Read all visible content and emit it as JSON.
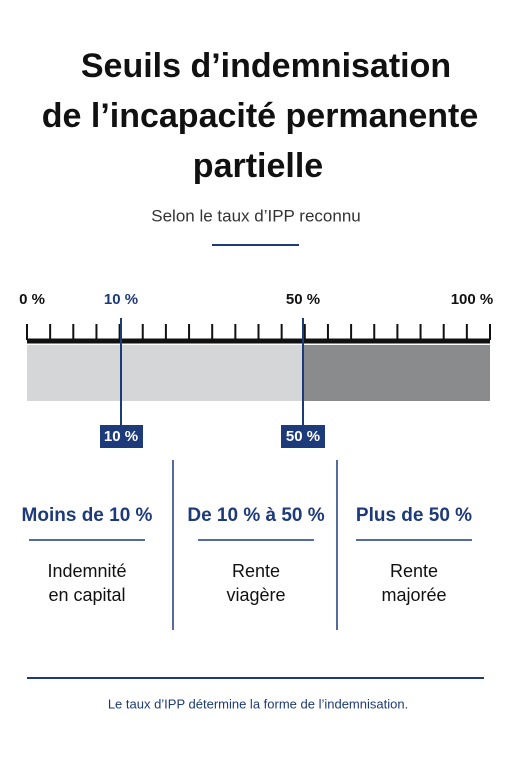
{
  "header": {
    "title": [
      "Seuils d’indemnisation",
      "de l’incapacité permanente",
      "partielle"
    ],
    "subtitle": "Selon le taux d’IPP reconnu"
  },
  "scale": {
    "labels": [
      "0 %",
      "10 %",
      "50 %",
      "100 %"
    ],
    "markers": [
      "10 %",
      "50 %"
    ]
  },
  "columns": [
    {
      "heading": "Moins de 10 %",
      "body": [
        "Indemnité",
        "en capital"
      ]
    },
    {
      "heading": "De 10 % à 50 %",
      "body": [
        "Rente",
        "viagère"
      ]
    },
    {
      "heading": "Plus de 50 %",
      "body": [
        "Rente",
        "majorée"
      ]
    }
  ],
  "footer": "Le taux d’IPP détermine la forme de l’indemnisation."
}
